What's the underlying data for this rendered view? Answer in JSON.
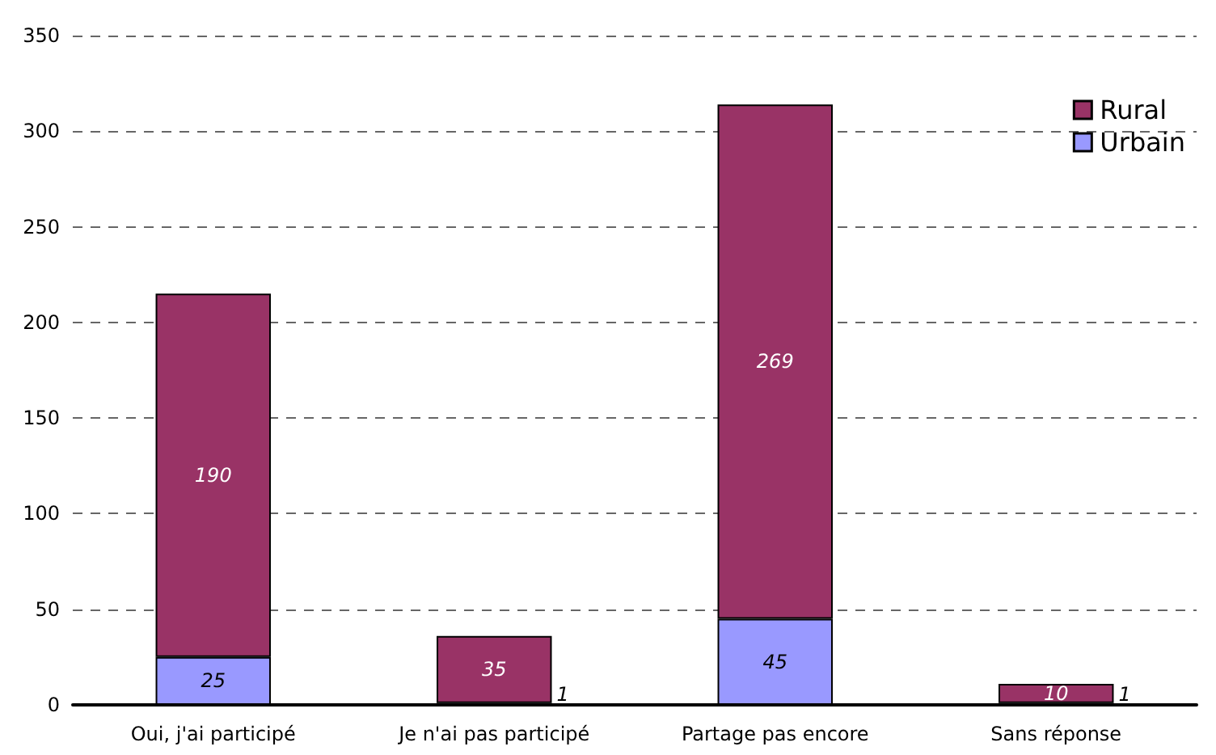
{
  "chart_data": {
    "type": "bar",
    "stacked": true,
    "categories": [
      "Oui, j'ai participé",
      "Je n'ai pas participé",
      "Partage pas encore",
      "Sans réponse"
    ],
    "series": [
      {
        "name": "Urbain",
        "color": "#9999ff",
        "values": [
          25,
          1,
          45,
          1
        ]
      },
      {
        "name": "Rural",
        "color": "#993366",
        "values": [
          190,
          35,
          269,
          10
        ]
      }
    ],
    "ylim": [
      0,
      350
    ],
    "yticks": [
      0,
      50,
      100,
      150,
      200,
      250,
      300,
      350
    ],
    "grid": "y",
    "legend": "top right",
    "data_labels": true
  }
}
